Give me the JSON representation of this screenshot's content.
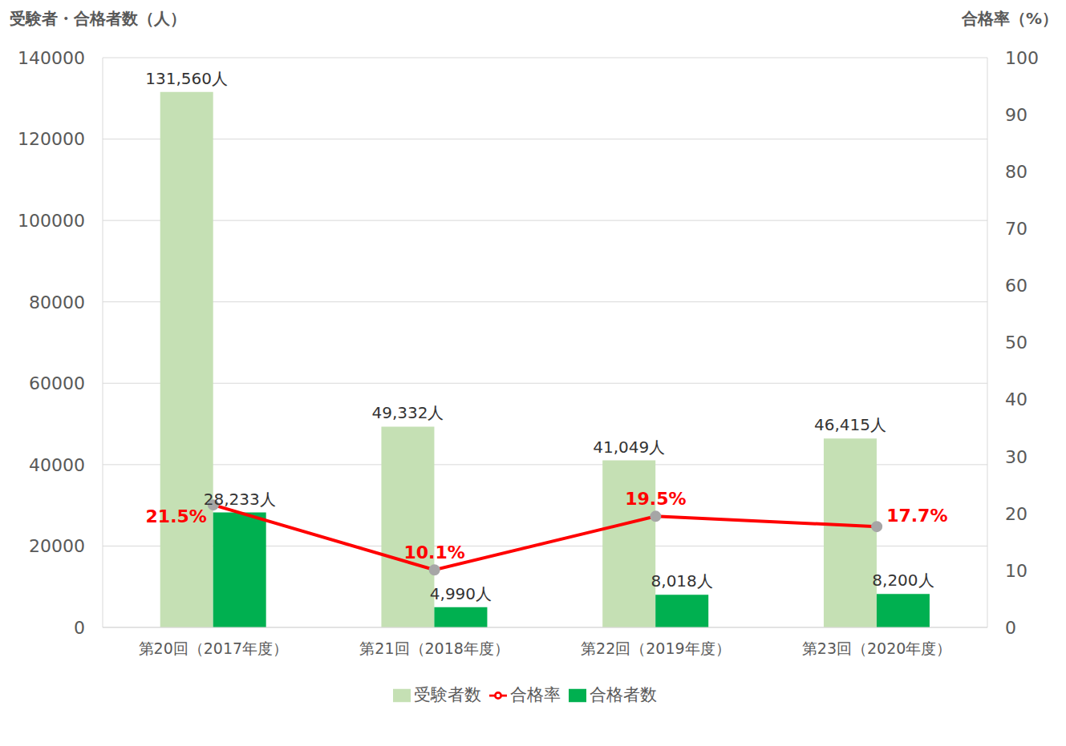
{
  "chart_data": {
    "type": "bar",
    "categories": [
      "第20回（2017年度）",
      "第21回（2018年度）",
      "第22回（2019年度）",
      "第23回（2020年度）"
    ],
    "y_label": "受験者・合格者数（人）",
    "y2_label": "合格率（%）",
    "ylim": [
      0,
      140000
    ],
    "yticks": [
      0,
      20000,
      40000,
      60000,
      80000,
      100000,
      120000,
      140000
    ],
    "y2lim": [
      0,
      100
    ],
    "y2ticks": [
      0,
      10,
      20,
      30,
      40,
      50,
      60,
      70,
      80,
      90,
      100
    ],
    "grid": true,
    "legend": "bottom",
    "data_labels": true,
    "series": [
      {
        "name": "受験者数",
        "type": "bar",
        "color": "#c5e0b4",
        "values": [
          131560,
          49332,
          41049,
          46415
        ],
        "value_labels": [
          "131,560人",
          "49,332人",
          "41,049人",
          "46,415人"
        ]
      },
      {
        "name": "合格者数",
        "type": "bar",
        "color": "#00b050",
        "values": [
          28233,
          4990,
          8018,
          8200
        ],
        "value_labels": [
          "28,233人",
          "4,990人",
          "8,018人",
          "8,200人"
        ]
      },
      {
        "name": "合格率",
        "type": "line",
        "axis": "y2",
        "color": "#ff0000",
        "marker": "circle",
        "values": [
          21.5,
          10.1,
          19.5,
          17.7
        ],
        "value_labels": [
          "21.5%",
          "10.1%",
          "19.5%",
          "17.7%"
        ]
      }
    ]
  }
}
